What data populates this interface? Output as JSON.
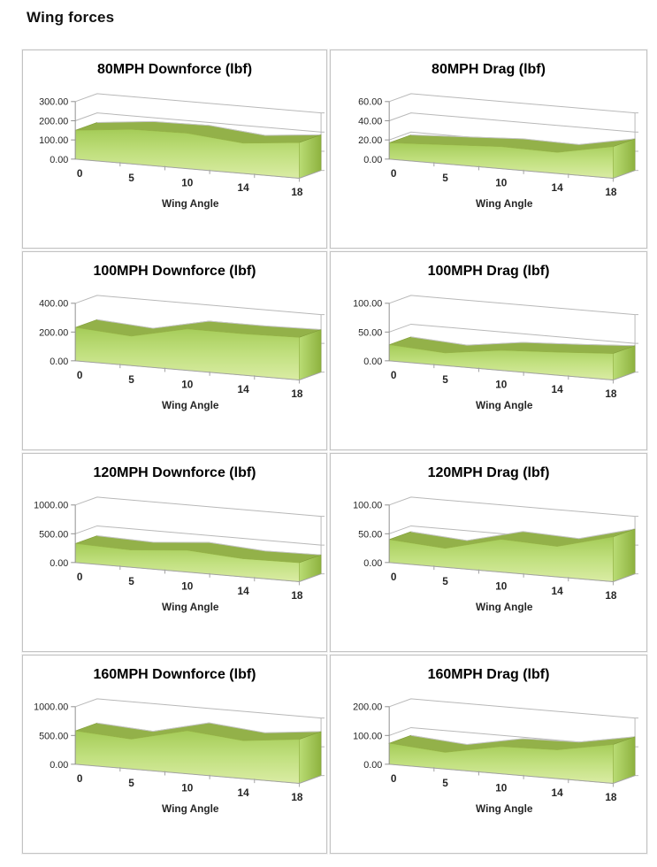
{
  "page": {
    "heading": "Wing forces"
  },
  "style": {
    "area_gradient_top": "#a5cc58",
    "area_gradient_mid": "#c1e07f",
    "area_gradient_bottom": "#daeca4",
    "ribbon_fill": "#93b149",
    "ribbon_edge": "#7d9a35",
    "ribbon_highlight": "#c6c6c6",
    "cap_light": "#b9dc74",
    "cap_dark": "#8eb23f",
    "grid_line": "#b8b8b8",
    "axis_line": "#8f8f8f",
    "floor_line": "#a3a3a3",
    "text": "#262626",
    "box_border": "#c3c3c3"
  },
  "chart_data": [
    {
      "type": "area",
      "title": "80MPH Downforce (lbf)",
      "xlabel": "Wing Angle",
      "categories": [
        "0",
        "5",
        "10",
        "14",
        "18"
      ],
      "values": [
        150,
        180,
        185,
        158,
        186
      ],
      "yticks": [
        0,
        100,
        200,
        300
      ],
      "ylim": [
        0,
        300
      ],
      "grid": true,
      "legend": "none"
    },
    {
      "type": "area",
      "title": "80MPH Drag (lbf)",
      "xlabel": "Wing Angle",
      "categories": [
        "0",
        "5",
        "10",
        "14",
        "18"
      ],
      "values": [
        17,
        20,
        23,
        22,
        33
      ],
      "yticks": [
        0,
        20,
        40,
        60
      ],
      "ylim": [
        0,
        60
      ],
      "grid": true,
      "legend": "none"
    },
    {
      "type": "area",
      "title": "100MPH Downforce (lbf)",
      "xlabel": "Wing Angle",
      "categories": [
        "0",
        "5",
        "10",
        "14",
        "18"
      ],
      "values": [
        232,
        205,
        288,
        288,
        296
      ],
      "yticks": [
        0,
        200,
        400
      ],
      "ylim": [
        0,
        400
      ],
      "grid": true,
      "legend": "none"
    },
    {
      "type": "area",
      "title": "100MPH Drag (lbf)",
      "xlabel": "Wing Angle",
      "categories": [
        "0",
        "5",
        "10",
        "14",
        "18"
      ],
      "values": [
        28,
        22,
        35,
        40,
        46
      ],
      "yticks": [
        0,
        50,
        100
      ],
      "ylim": [
        0,
        100
      ],
      "grid": true,
      "legend": "none"
    },
    {
      "type": "area",
      "title": "120MPH Downforce (lbf)",
      "xlabel": "Wing Angle",
      "categories": [
        "0",
        "5",
        "10",
        "14",
        "18"
      ],
      "values": [
        330,
        300,
        380,
        315,
        330
      ],
      "yticks": [
        0,
        500,
        1000
      ],
      "ylim": [
        0,
        1000
      ],
      "grid": true,
      "legend": "none"
    },
    {
      "type": "area",
      "title": "120MPH Drag (lbf)",
      "xlabel": "Wing Angle",
      "categories": [
        "0",
        "5",
        "10",
        "14",
        "18"
      ],
      "values": [
        40,
        33,
        57,
        53,
        78
      ],
      "yticks": [
        0,
        50,
        100
      ],
      "ylim": [
        0,
        100
      ],
      "grid": true,
      "legend": "none"
    },
    {
      "type": "area",
      "title": "160MPH Downforce (lbf)",
      "xlabel": "Wing Angle",
      "categories": [
        "0",
        "5",
        "10",
        "14",
        "18"
      ],
      "values": [
        580,
        520,
        750,
        660,
        765
      ],
      "yticks": [
        0,
        500,
        1000
      ],
      "ylim": [
        0,
        1000
      ],
      "grid": true,
      "legend": "none"
    },
    {
      "type": "area",
      "title": "160MPH Drag (lbf)",
      "xlabel": "Wing Angle",
      "categories": [
        "0",
        "5",
        "10",
        "14",
        "18"
      ],
      "values": [
        73,
        58,
        95,
        100,
        135
      ],
      "yticks": [
        0,
        100,
        200
      ],
      "ylim": [
        0,
        200
      ],
      "grid": true,
      "legend": "none"
    }
  ]
}
